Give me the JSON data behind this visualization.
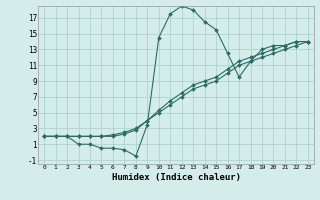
{
  "xlabel": "Humidex (Indice chaleur)",
  "bg_color": "#d4edeb",
  "line_color": "#2d6b65",
  "grid_color": "#a8ceca",
  "xlim": [
    -0.5,
    23.5
  ],
  "ylim": [
    -1.5,
    18.5
  ],
  "yticks": [
    -1,
    1,
    3,
    5,
    7,
    9,
    11,
    13,
    15,
    17
  ],
  "xticks": [
    0,
    1,
    2,
    3,
    4,
    5,
    6,
    7,
    8,
    9,
    10,
    11,
    12,
    13,
    14,
    15,
    16,
    17,
    18,
    19,
    20,
    21,
    22,
    23
  ],
  "line1_x": [
    0,
    1,
    2,
    3,
    4,
    5,
    6,
    7,
    8,
    9,
    10,
    11,
    12,
    13,
    14,
    15,
    16,
    17,
    18,
    19,
    20,
    21,
    22,
    23
  ],
  "line1_y": [
    2,
    2,
    2,
    1,
    1,
    0.5,
    0.5,
    0.3,
    -0.5,
    3.5,
    14.5,
    17.5,
    18.5,
    18.0,
    16.5,
    15.5,
    12.5,
    9.5,
    11.5,
    13.0,
    13.5,
    13.5,
    14.0,
    14.0
  ],
  "line2_x": [
    0,
    1,
    2,
    3,
    4,
    5,
    6,
    7,
    8,
    9,
    10,
    11,
    12,
    13,
    14,
    15,
    16,
    17,
    18,
    19,
    20,
    21,
    22,
    23
  ],
  "line2_y": [
    2.0,
    2.0,
    2.0,
    2.0,
    2.0,
    2.0,
    2.2,
    2.5,
    3.0,
    4.0,
    5.0,
    6.0,
    7.0,
    8.0,
    8.5,
    9.0,
    10.0,
    11.0,
    11.5,
    12.0,
    12.5,
    13.0,
    13.5,
    14.0
  ],
  "line3_x": [
    0,
    1,
    2,
    3,
    4,
    5,
    6,
    7,
    8,
    9,
    10,
    11,
    12,
    13,
    14,
    15,
    16,
    17,
    18,
    19,
    20,
    21,
    22,
    23
  ],
  "line3_y": [
    2.0,
    2.0,
    2.0,
    2.0,
    2.0,
    2.0,
    2.0,
    2.3,
    2.8,
    4.0,
    5.3,
    6.5,
    7.5,
    8.5,
    9.0,
    9.5,
    10.5,
    11.5,
    12.0,
    12.5,
    13.0,
    13.5,
    14.0,
    14.0
  ]
}
